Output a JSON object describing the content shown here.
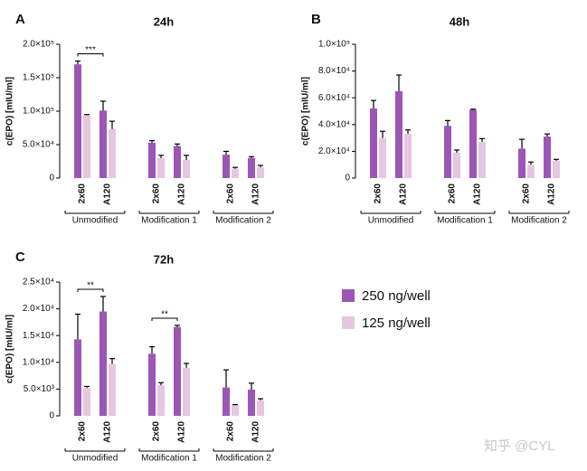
{
  "chart_data": [
    {
      "type": "bar",
      "panel": "A",
      "title": "24h",
      "y_label": "c(EPO) [mIU/ml]",
      "categories": [
        "2x60",
        "A120",
        "2x60",
        "A120",
        "2x60",
        "A120"
      ],
      "groups": [
        "Unmodified",
        "Modification 1",
        "Modification 2"
      ],
      "series": [
        {
          "name": "250 ng/well",
          "color": "#9b56b6",
          "values": [
            170000,
            101000,
            53000,
            48000,
            35000,
            30000
          ],
          "errors": [
            5000,
            14000,
            3000,
            3000,
            5000,
            2000
          ]
        },
        {
          "name": "125 ng/well",
          "color": "#e6c6e1",
          "values": [
            94000,
            73000,
            30000,
            27000,
            14000,
            16000
          ],
          "errors": [
            1000,
            12000,
            4000,
            7000,
            2000,
            3000
          ]
        }
      ],
      "ylim": [
        0,
        200000
      ],
      "yticks": [
        0,
        {
          "value": 50000,
          "label": "5.0×10⁴"
        },
        {
          "value": 100000,
          "label": "1.0×10⁵"
        },
        {
          "value": 150000,
          "label": "1.5×10⁵"
        },
        {
          "value": 200000,
          "label": "2.0×10⁵"
        }
      ],
      "annotations": [
        {
          "text": "***",
          "group": "Unmodified"
        }
      ],
      "legend": false
    },
    {
      "type": "bar",
      "panel": "B",
      "title": "48h",
      "y_label": "c(EPO) [mIU/ml]",
      "categories": [
        "2x60",
        "A120",
        "2x60",
        "A120",
        "2x60",
        "A120"
      ],
      "groups": [
        "Unmodified",
        "Modification 1",
        "Modification 2"
      ],
      "series": [
        {
          "name": "250 ng/well",
          "color": "#9b56b6",
          "values": [
            52000,
            65000,
            39000,
            51000,
            22000,
            31000
          ],
          "errors": [
            6000,
            12000,
            4000,
            500,
            7000,
            2000
          ]
        },
        {
          "name": "125 ng/well",
          "color": "#e6c6e1",
          "values": [
            30000,
            33000,
            19000,
            27000,
            10000,
            13000
          ],
          "errors": [
            5000,
            3000,
            2000,
            2500,
            2000,
            1000
          ]
        }
      ],
      "ylim": [
        0,
        100000
      ],
      "yticks": [
        0,
        {
          "value": 20000,
          "label": "2.0×10⁴"
        },
        {
          "value": 40000,
          "label": "4.0×10⁴"
        },
        {
          "value": 60000,
          "label": "6.0×10⁴"
        },
        {
          "value": 80000,
          "label": "8.0×10⁴"
        },
        {
          "value": 100000,
          "label": "1.0×10⁵"
        }
      ],
      "annotations": [],
      "legend": false
    },
    {
      "type": "bar",
      "panel": "C",
      "title": "72h",
      "y_label": "c(EPO) [mIU/ml]",
      "categories": [
        "2x60",
        "A120",
        "2x60",
        "A120",
        "2x60",
        "A120"
      ],
      "groups": [
        "Unmodified",
        "Modification 1",
        "Modification 2"
      ],
      "series": [
        {
          "name": "250 ng/well",
          "color": "#9b56b6",
          "values": [
            14300,
            19500,
            11600,
            16600,
            5300,
            4900
          ],
          "errors": [
            4700,
            2800,
            1300,
            300,
            3300,
            1200
          ]
        },
        {
          "name": "125 ng/well",
          "color": "#e6c6e1",
          "values": [
            5200,
            9700,
            5700,
            9000,
            2000,
            2900
          ],
          "errors": [
            300,
            1000,
            500,
            800,
            100,
            300
          ]
        }
      ],
      "ylim": [
        0,
        25000
      ],
      "yticks": [
        0,
        {
          "value": 5000,
          "label": "5.0×10³"
        },
        {
          "value": 10000,
          "label": "1.0×10⁴"
        },
        {
          "value": 15000,
          "label": "1.5×10⁴"
        },
        {
          "value": 20000,
          "label": "2.0×10⁴"
        },
        {
          "value": 25000,
          "label": "2.5×10⁴"
        }
      ],
      "annotations": [
        {
          "text": "**",
          "group": "Unmodified"
        },
        {
          "text": "**",
          "group": "Modification 1"
        }
      ],
      "legend": "right"
    }
  ],
  "watermark": "知乎 @CYL"
}
